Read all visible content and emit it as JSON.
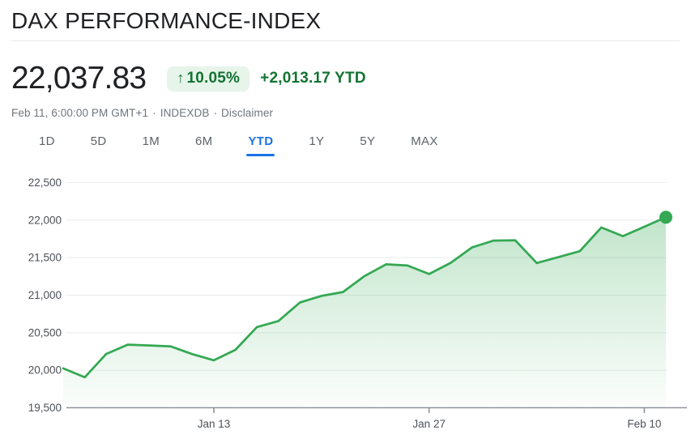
{
  "header": {
    "title": "DAX PERFORMANCE-INDEX"
  },
  "quote": {
    "price": "22,037.83",
    "change_badge": {
      "arrow": "↑",
      "percent": "10.05%",
      "direction": "up"
    },
    "change_absolute": "+2,013.17 YTD",
    "timestamp": "Feb 11, 6:00:00 PM GMT+1",
    "separator": "·",
    "exchange": "INDEXDB",
    "disclaimer": "Disclaimer"
  },
  "tabs": {
    "items": [
      {
        "label": "1D",
        "active": false
      },
      {
        "label": "5D",
        "active": false
      },
      {
        "label": "1M",
        "active": false
      },
      {
        "label": "6M",
        "active": false
      },
      {
        "label": "YTD",
        "active": true
      },
      {
        "label": "1Y",
        "active": false
      },
      {
        "label": "5Y",
        "active": false
      },
      {
        "label": "MAX",
        "active": false
      }
    ]
  },
  "colors": {
    "text_primary": "#202124",
    "text_secondary": "#5f6368",
    "text_tertiary": "#70757a",
    "axis_text": "#4d5156",
    "accent_blue": "#1a73e8",
    "green_line": "#34a853",
    "green_text": "#137333",
    "badge_bg": "#e6f4ea",
    "grid_line": "#e8eaed",
    "axis_line": "#8f949a",
    "divider": "#e8eaed"
  },
  "chart_data": {
    "type": "area",
    "title": "DAX PERFORMANCE-INDEX — YTD",
    "xlabel": "",
    "ylabel": "",
    "grid": true,
    "end_dot": true,
    "line_color": "#34a853",
    "ylim": [
      19500,
      22500
    ],
    "y_ticks": [
      {
        "value": 22500,
        "label": "22,500"
      },
      {
        "value": 22000,
        "label": "22,000"
      },
      {
        "value": 21500,
        "label": "21,500"
      },
      {
        "value": 21000,
        "label": "21,000"
      },
      {
        "value": 20500,
        "label": "20,500"
      },
      {
        "value": 20000,
        "label": "20,000"
      },
      {
        "value": 19500,
        "label": "19,500"
      }
    ],
    "x_ticks": [
      "Jan 13",
      "Jan 27",
      "Feb 10"
    ],
    "x": [
      "Jan 2",
      "Jan 3",
      "Jan 6",
      "Jan 7",
      "Jan 8",
      "Jan 9",
      "Jan 10",
      "Jan 13",
      "Jan 14",
      "Jan 15",
      "Jan 16",
      "Jan 17",
      "Jan 20",
      "Jan 21",
      "Jan 22",
      "Jan 23",
      "Jan 24",
      "Jan 27",
      "Jan 28",
      "Jan 29",
      "Jan 30",
      "Jan 31",
      "Feb 3",
      "Feb 4",
      "Feb 5",
      "Feb 6",
      "Feb 7",
      "Feb 10",
      "Feb 11"
    ],
    "values": [
      20024.66,
      19906.08,
      20216.19,
      20340.57,
      20329.94,
      20317.1,
      20214.79,
      20132.85,
      20271.33,
      20574.68,
      20655.39,
      20903.39,
      20990.31,
      21042.0,
      21254.27,
      21411.53,
      21394.93,
      21282.18,
      21430.58,
      21637.53,
      21727.2,
      21732.05,
      21428.24,
      21505.7,
      21585.93,
      21902.42,
      21787.0,
      21911.74,
      22037.83
    ]
  }
}
